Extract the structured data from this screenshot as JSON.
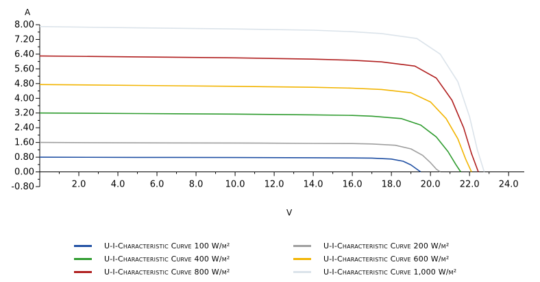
{
  "chart_data": {
    "type": "line",
    "title": "",
    "xlabel": "V",
    "ylabel": "A",
    "xlim": [
      0,
      24.8
    ],
    "ylim": [
      -0.8,
      8.0
    ],
    "x_ticks": [
      "2.0",
      "4.0",
      "6.0",
      "8.0",
      "10.0",
      "12.0",
      "14.0",
      "16.0",
      "18.0",
      "20.0",
      "22.0",
      "24.0"
    ],
    "y_ticks": [
      "8.00",
      "7.20",
      "6.40",
      "5.60",
      "4.80",
      "4.00",
      "3.20",
      "2.40",
      "1.60",
      "0.80",
      "0.00",
      "-0.80"
    ],
    "grid": false,
    "legend_placement": "bottom",
    "series": [
      {
        "name": "U-I-Characteristic Curve 100 W/m²",
        "color": "#1f4fa3",
        "x": [
          0,
          5,
          10,
          14,
          16,
          17,
          18,
          18.6,
          19.0,
          19.3,
          19.5
        ],
        "y": [
          0.8,
          0.79,
          0.78,
          0.77,
          0.76,
          0.75,
          0.7,
          0.58,
          0.38,
          0.15,
          0.0
        ]
      },
      {
        "name": "U-I-Characteristic Curve 200 W/m²",
        "color": "#9e9e9e",
        "x": [
          0,
          5,
          10,
          14,
          16,
          17,
          18.2,
          19.0,
          19.6,
          20.0,
          20.3,
          20.5
        ],
        "y": [
          1.6,
          1.58,
          1.57,
          1.55,
          1.54,
          1.52,
          1.45,
          1.25,
          0.9,
          0.5,
          0.15,
          0.0
        ]
      },
      {
        "name": "U-I-Characteristic Curve 400 W/m²",
        "color": "#2e9b2e",
        "x": [
          0,
          5,
          10,
          14,
          16,
          17,
          18.5,
          19.5,
          20.3,
          20.9,
          21.3,
          21.55
        ],
        "y": [
          3.2,
          3.17,
          3.14,
          3.1,
          3.07,
          3.03,
          2.9,
          2.55,
          1.9,
          1.1,
          0.4,
          0.0
        ]
      },
      {
        "name": "U-I-Characteristic Curve 600 W/m²",
        "color": "#f2b400",
        "x": [
          0,
          5,
          10,
          14,
          16,
          17.5,
          19.0,
          20.0,
          20.8,
          21.4,
          21.8,
          22.1
        ],
        "y": [
          4.75,
          4.7,
          4.65,
          4.6,
          4.55,
          4.48,
          4.3,
          3.8,
          2.9,
          1.8,
          0.7,
          0.0
        ]
      },
      {
        "name": "U-I-Characteristic Curve 800 W/m²",
        "color": "#b01e1e",
        "x": [
          0,
          5,
          10,
          14,
          16,
          17.5,
          19.2,
          20.3,
          21.1,
          21.7,
          22.1,
          22.45
        ],
        "y": [
          6.3,
          6.25,
          6.2,
          6.13,
          6.07,
          5.98,
          5.75,
          5.1,
          3.9,
          2.4,
          1.0,
          0.0
        ]
      },
      {
        "name": "U-I-Characteristic Curve 1,000 W/m²",
        "color": "#dbe3ea",
        "x": [
          0,
          5,
          10,
          14,
          16,
          17.5,
          19.3,
          20.5,
          21.4,
          22.0,
          22.4,
          22.75
        ],
        "y": [
          7.9,
          7.83,
          7.77,
          7.7,
          7.62,
          7.52,
          7.25,
          6.4,
          4.9,
          3.0,
          1.2,
          0.0
        ]
      }
    ]
  }
}
